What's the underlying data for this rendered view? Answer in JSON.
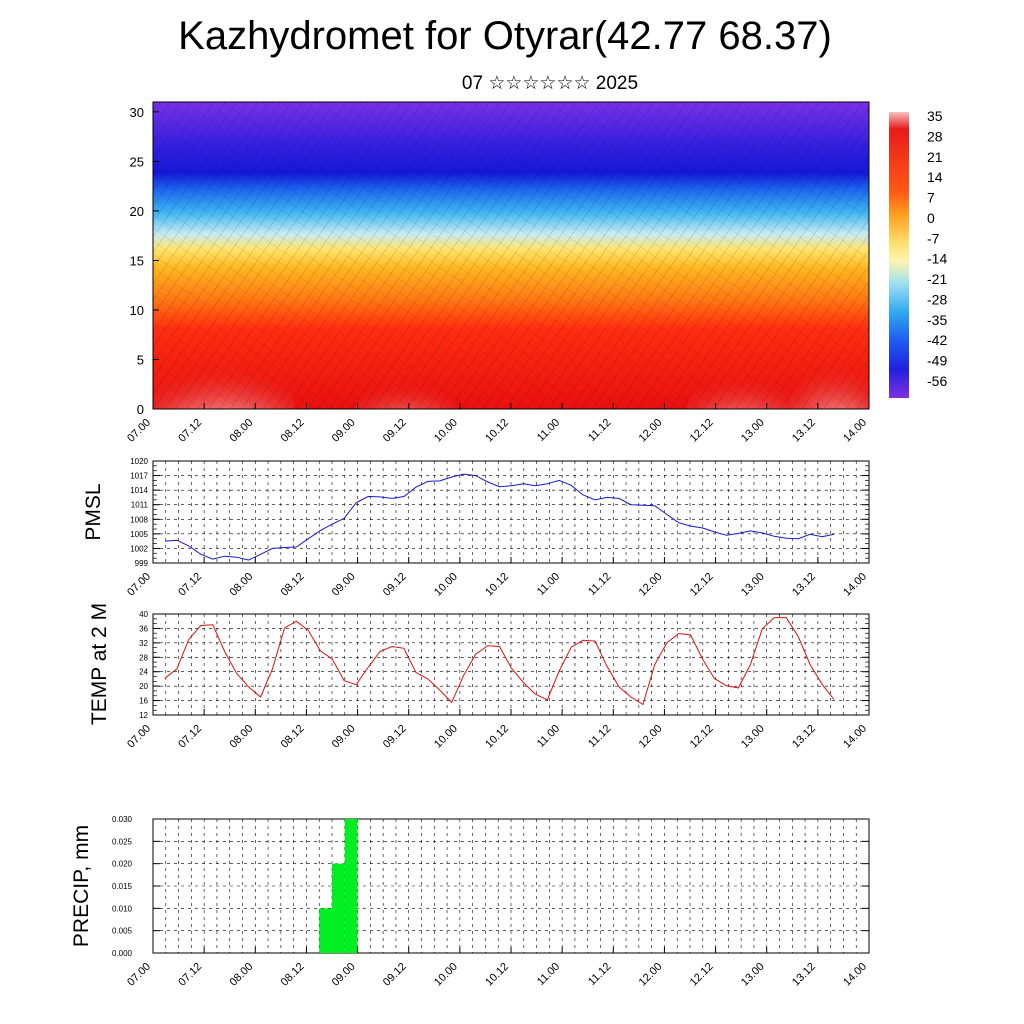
{
  "title": "Kazhydromet for Otyrar(42.77 68.37)",
  "subtitle": "07 ☆☆☆☆☆☆ 2025",
  "time_ticks": [
    "07.00",
    "07.12",
    "08.00",
    "08.12",
    "09.00",
    "09.12",
    "10.00",
    "10.12",
    "11.00",
    "11.12",
    "12.00",
    "12.12",
    "13.00",
    "13.12",
    "14.00"
  ],
  "chart_data": [
    {
      "type": "heatmap",
      "name": "upper-air cross-section",
      "yticks": [
        "0",
        "5",
        "10",
        "15",
        "20",
        "25",
        "30"
      ],
      "ylim": [
        0,
        31
      ],
      "colorbar_labels": [
        "35",
        "28",
        "21",
        "14",
        "7",
        "0",
        "-7",
        "-14",
        "-21",
        "-28",
        "-35",
        "-42",
        "-49",
        "-56"
      ],
      "colors": {
        "warm": "#e01010",
        "hot": "#f2b6b6",
        "yellow": "#fff1a0",
        "cyan": "#55bff0",
        "blue": "#1a25d8",
        "violet": "#7a2ee0"
      }
    },
    {
      "type": "line",
      "ylabel": "PMSL",
      "yticks": [
        "1020",
        "1017",
        "1014",
        "1011",
        "1008",
        "1005",
        "1002",
        "999"
      ],
      "ylim": [
        999,
        1020
      ],
      "color": "#1818d0",
      "x_hours": [
        0,
        6,
        12,
        18,
        24,
        30,
        36,
        42,
        48,
        54,
        60,
        66,
        72,
        78,
        84,
        90,
        96,
        102,
        108,
        114,
        120,
        126,
        132,
        138,
        144,
        150,
        156,
        162,
        168,
        174,
        180,
        186,
        192,
        198,
        204,
        210,
        216,
        222,
        228,
        234,
        240,
        246,
        252,
        258,
        264,
        270,
        276,
        282,
        288,
        294,
        300,
        306,
        312,
        318,
        324,
        330,
        336
      ],
      "values": [
        1003.5,
        1003.7,
        1002.5,
        1000.8,
        999.8,
        1000.4,
        1000.2,
        999.6,
        1000.8,
        1002.0,
        1002.2,
        1002.3,
        1004.0,
        1005.7,
        1007.0,
        1008.2,
        1011.4,
        1012.7,
        1012.6,
        1012.3,
        1012.7,
        1014.6,
        1015.8,
        1015.9,
        1016.7,
        1017.3,
        1017.0,
        1015.7,
        1014.7,
        1014.9,
        1015.3,
        1014.9,
        1015.3,
        1016.0,
        1015.0,
        1013.0,
        1012.0,
        1012.5,
        1012.3,
        1011.0,
        1010.9,
        1010.8,
        1009.0,
        1007.3,
        1006.6,
        1006.2,
        1005.4,
        1004.7,
        1005.1,
        1005.6,
        1005.2,
        1004.5,
        1004.1,
        1004.0,
        1004.9,
        1004.4,
        1004.9
      ]
    },
    {
      "type": "line",
      "ylabel": "TEMP at 2 M",
      "yticks": [
        "40",
        "36",
        "32",
        "28",
        "24",
        "20",
        "16",
        "12"
      ],
      "ylim": [
        12,
        40
      ],
      "color": "#e01010",
      "x_hours": [
        0,
        6,
        12,
        18,
        24,
        30,
        36,
        42,
        48,
        54,
        60,
        66,
        72,
        78,
        84,
        90,
        96,
        102,
        108,
        114,
        120,
        126,
        132,
        138,
        144,
        150,
        156,
        162,
        168,
        174,
        180,
        186,
        192,
        198,
        204,
        210,
        216,
        222,
        228,
        234,
        240,
        246,
        252,
        258,
        264,
        270,
        276,
        282,
        288,
        294,
        300,
        306,
        312,
        318,
        324,
        330,
        336
      ],
      "values": [
        22.2,
        24.8,
        33.0,
        36.8,
        37.0,
        29.6,
        23.5,
        19.8,
        17.0,
        24.8,
        36.1,
        38.0,
        35.4,
        29.8,
        27.5,
        21.5,
        20.4,
        25.2,
        29.6,
        31.0,
        30.5,
        23.8,
        22.0,
        18.9,
        15.5,
        23.0,
        28.8,
        31.2,
        31.0,
        25.0,
        21.0,
        17.8,
        16.2,
        24.2,
        30.8,
        32.7,
        32.5,
        25.5,
        19.8,
        17.0,
        14.9,
        26.0,
        32.0,
        34.6,
        34.2,
        27.5,
        22.1,
        20.1,
        19.5,
        26.0,
        35.9,
        39.0,
        39.0,
        33.8,
        26.0,
        20.5,
        16.3
      ]
    },
    {
      "type": "bar",
      "ylabel": "PRECIP, mm",
      "yticks": [
        "0.030",
        "0.025",
        "0.020",
        "0.015",
        "0.010",
        "0.005",
        "0.000"
      ],
      "ylim": [
        0,
        0.03
      ],
      "color": "#00ee22",
      "bars": [
        {
          "x_hours": 42,
          "value": 0.01
        },
        {
          "x_hours": 45,
          "value": 0.02
        },
        {
          "x_hours": 48,
          "value": 0.03
        }
      ]
    }
  ]
}
